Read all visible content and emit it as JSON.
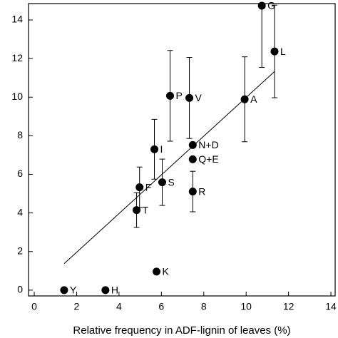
{
  "chart_data": {
    "type": "scatter",
    "x_label": "Relative frequency in ADF-lignin of leaves (%)",
    "xlim": [
      -0.27,
      14.2
    ],
    "ylim": [
      -0.3,
      14.85
    ],
    "xticks": [
      0,
      2,
      4,
      6,
      8,
      10,
      12,
      14
    ],
    "yticks": [
      0,
      2,
      4,
      6,
      8,
      10,
      12,
      14
    ],
    "color": "#000000",
    "series": [
      {
        "labels": [
          "Y",
          "H",
          "K",
          "T",
          "F",
          "S",
          "I",
          "P",
          "V",
          "N+D",
          "Q+E",
          "R",
          "A",
          "G",
          "L"
        ],
        "x": [
          1.41,
          3.36,
          5.77,
          4.83,
          4.97,
          6.04,
          5.67,
          6.41,
          7.32,
          7.48,
          7.48,
          7.48,
          9.93,
          10.74,
          11.34
        ],
        "values": [
          0,
          0,
          0.96,
          4.15,
          5.33,
          5.59,
          7.3,
          10.07,
          9.96,
          7.52,
          6.78,
          5.11,
          9.89,
          14.74,
          12.37
        ],
        "errors": [
          null,
          null,
          null,
          0.9,
          1.05,
          1.2,
          1.55,
          2.35,
          2.1,
          null,
          null,
          1.05,
          2.2,
          3.2,
          2.4
        ]
      }
    ],
    "fit": {
      "x": [
        1.41,
        11.34
      ],
      "values": [
        1.37,
        11.33
      ]
    }
  }
}
